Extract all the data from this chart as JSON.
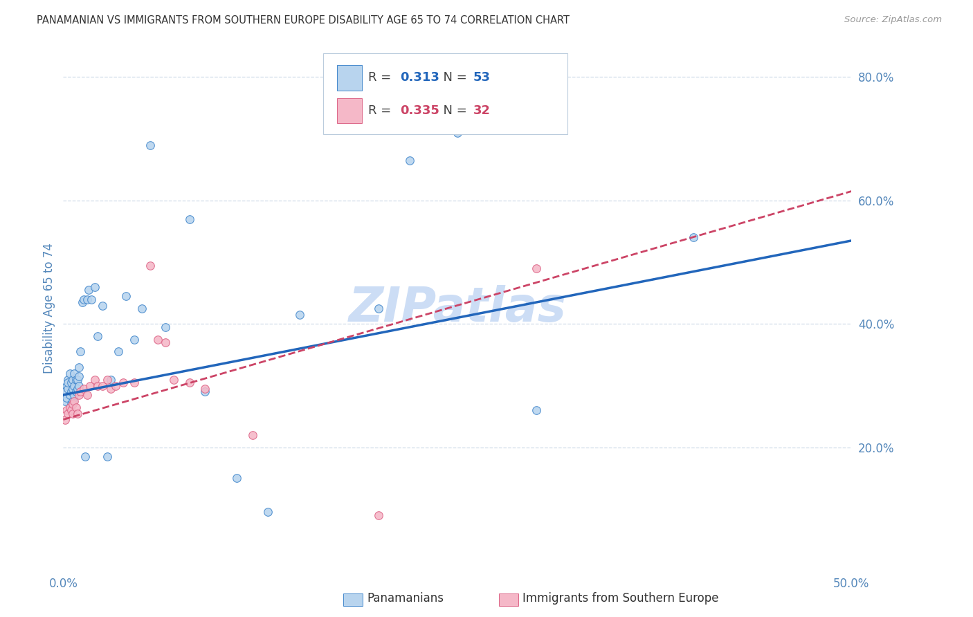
{
  "title": "PANAMANIAN VS IMMIGRANTS FROM SOUTHERN EUROPE DISABILITY AGE 65 TO 74 CORRELATION CHART",
  "source": "Source: ZipAtlas.com",
  "ylabel": "Disability Age 65 to 74",
  "xlim": [
    0.0,
    0.5
  ],
  "ylim": [
    0.0,
    0.85
  ],
  "xticks": [
    0.0,
    0.05,
    0.1,
    0.15,
    0.2,
    0.25,
    0.3,
    0.35,
    0.4,
    0.45,
    0.5
  ],
  "xtick_labels": [
    "0.0%",
    "",
    "",
    "",
    "",
    "",
    "",
    "",
    "",
    "",
    "50.0%"
  ],
  "yticks": [
    0.2,
    0.4,
    0.6,
    0.8
  ],
  "ytick_labels": [
    "20.0%",
    "40.0%",
    "60.0%",
    "80.0%"
  ],
  "series1_label": "Panamanians",
  "series2_label": "Immigrants from Southern Europe",
  "series1_R": "0.313",
  "series1_N": "53",
  "series2_R": "0.335",
  "series2_N": "32",
  "series1_face": "#b8d4ee",
  "series2_face": "#f5b8c8",
  "series1_edge": "#4488cc",
  "series2_edge": "#dd6688",
  "series1_line": "#2266bb",
  "series2_line": "#cc4466",
  "watermark": "ZIPatlas",
  "watermark_color": "#ccddf5",
  "grid_color": "#d0dce8",
  "title_color": "#333333",
  "axis_color": "#5588bb",
  "background": "#ffffff",
  "series1_x": [
    0.001,
    0.001,
    0.002,
    0.002,
    0.003,
    0.003,
    0.003,
    0.004,
    0.004,
    0.005,
    0.005,
    0.005,
    0.006,
    0.006,
    0.006,
    0.007,
    0.007,
    0.007,
    0.008,
    0.008,
    0.009,
    0.009,
    0.01,
    0.01,
    0.01,
    0.011,
    0.012,
    0.013,
    0.014,
    0.015,
    0.016,
    0.018,
    0.02,
    0.022,
    0.025,
    0.028,
    0.03,
    0.035,
    0.04,
    0.045,
    0.05,
    0.055,
    0.065,
    0.08,
    0.09,
    0.11,
    0.13,
    0.15,
    0.2,
    0.22,
    0.25,
    0.3,
    0.4
  ],
  "series1_y": [
    0.29,
    0.275,
    0.3,
    0.28,
    0.31,
    0.295,
    0.305,
    0.32,
    0.285,
    0.29,
    0.305,
    0.27,
    0.31,
    0.295,
    0.275,
    0.32,
    0.3,
    0.285,
    0.31,
    0.29,
    0.31,
    0.295,
    0.33,
    0.315,
    0.3,
    0.355,
    0.435,
    0.44,
    0.185,
    0.44,
    0.455,
    0.44,
    0.46,
    0.38,
    0.43,
    0.185,
    0.31,
    0.355,
    0.445,
    0.375,
    0.425,
    0.69,
    0.395,
    0.57,
    0.29,
    0.15,
    0.095,
    0.415,
    0.425,
    0.665,
    0.71,
    0.26,
    0.54
  ],
  "series2_x": [
    0.001,
    0.002,
    0.003,
    0.004,
    0.005,
    0.006,
    0.006,
    0.007,
    0.008,
    0.009,
    0.01,
    0.011,
    0.013,
    0.015,
    0.017,
    0.02,
    0.022,
    0.025,
    0.028,
    0.03,
    0.033,
    0.038,
    0.045,
    0.055,
    0.06,
    0.065,
    0.07,
    0.08,
    0.09,
    0.12,
    0.2,
    0.3
  ],
  "series2_y": [
    0.245,
    0.26,
    0.255,
    0.265,
    0.26,
    0.255,
    0.27,
    0.275,
    0.265,
    0.255,
    0.285,
    0.29,
    0.295,
    0.285,
    0.3,
    0.31,
    0.3,
    0.3,
    0.31,
    0.295,
    0.3,
    0.305,
    0.305,
    0.495,
    0.375,
    0.37,
    0.31,
    0.305,
    0.295,
    0.22,
    0.09,
    0.49
  ],
  "line1_x0": 0.0,
  "line1_y0": 0.285,
  "line1_x1": 0.5,
  "line1_y1": 0.535,
  "line2_x0": 0.0,
  "line2_y0": 0.245,
  "line2_x1": 0.5,
  "line2_y1": 0.615
}
